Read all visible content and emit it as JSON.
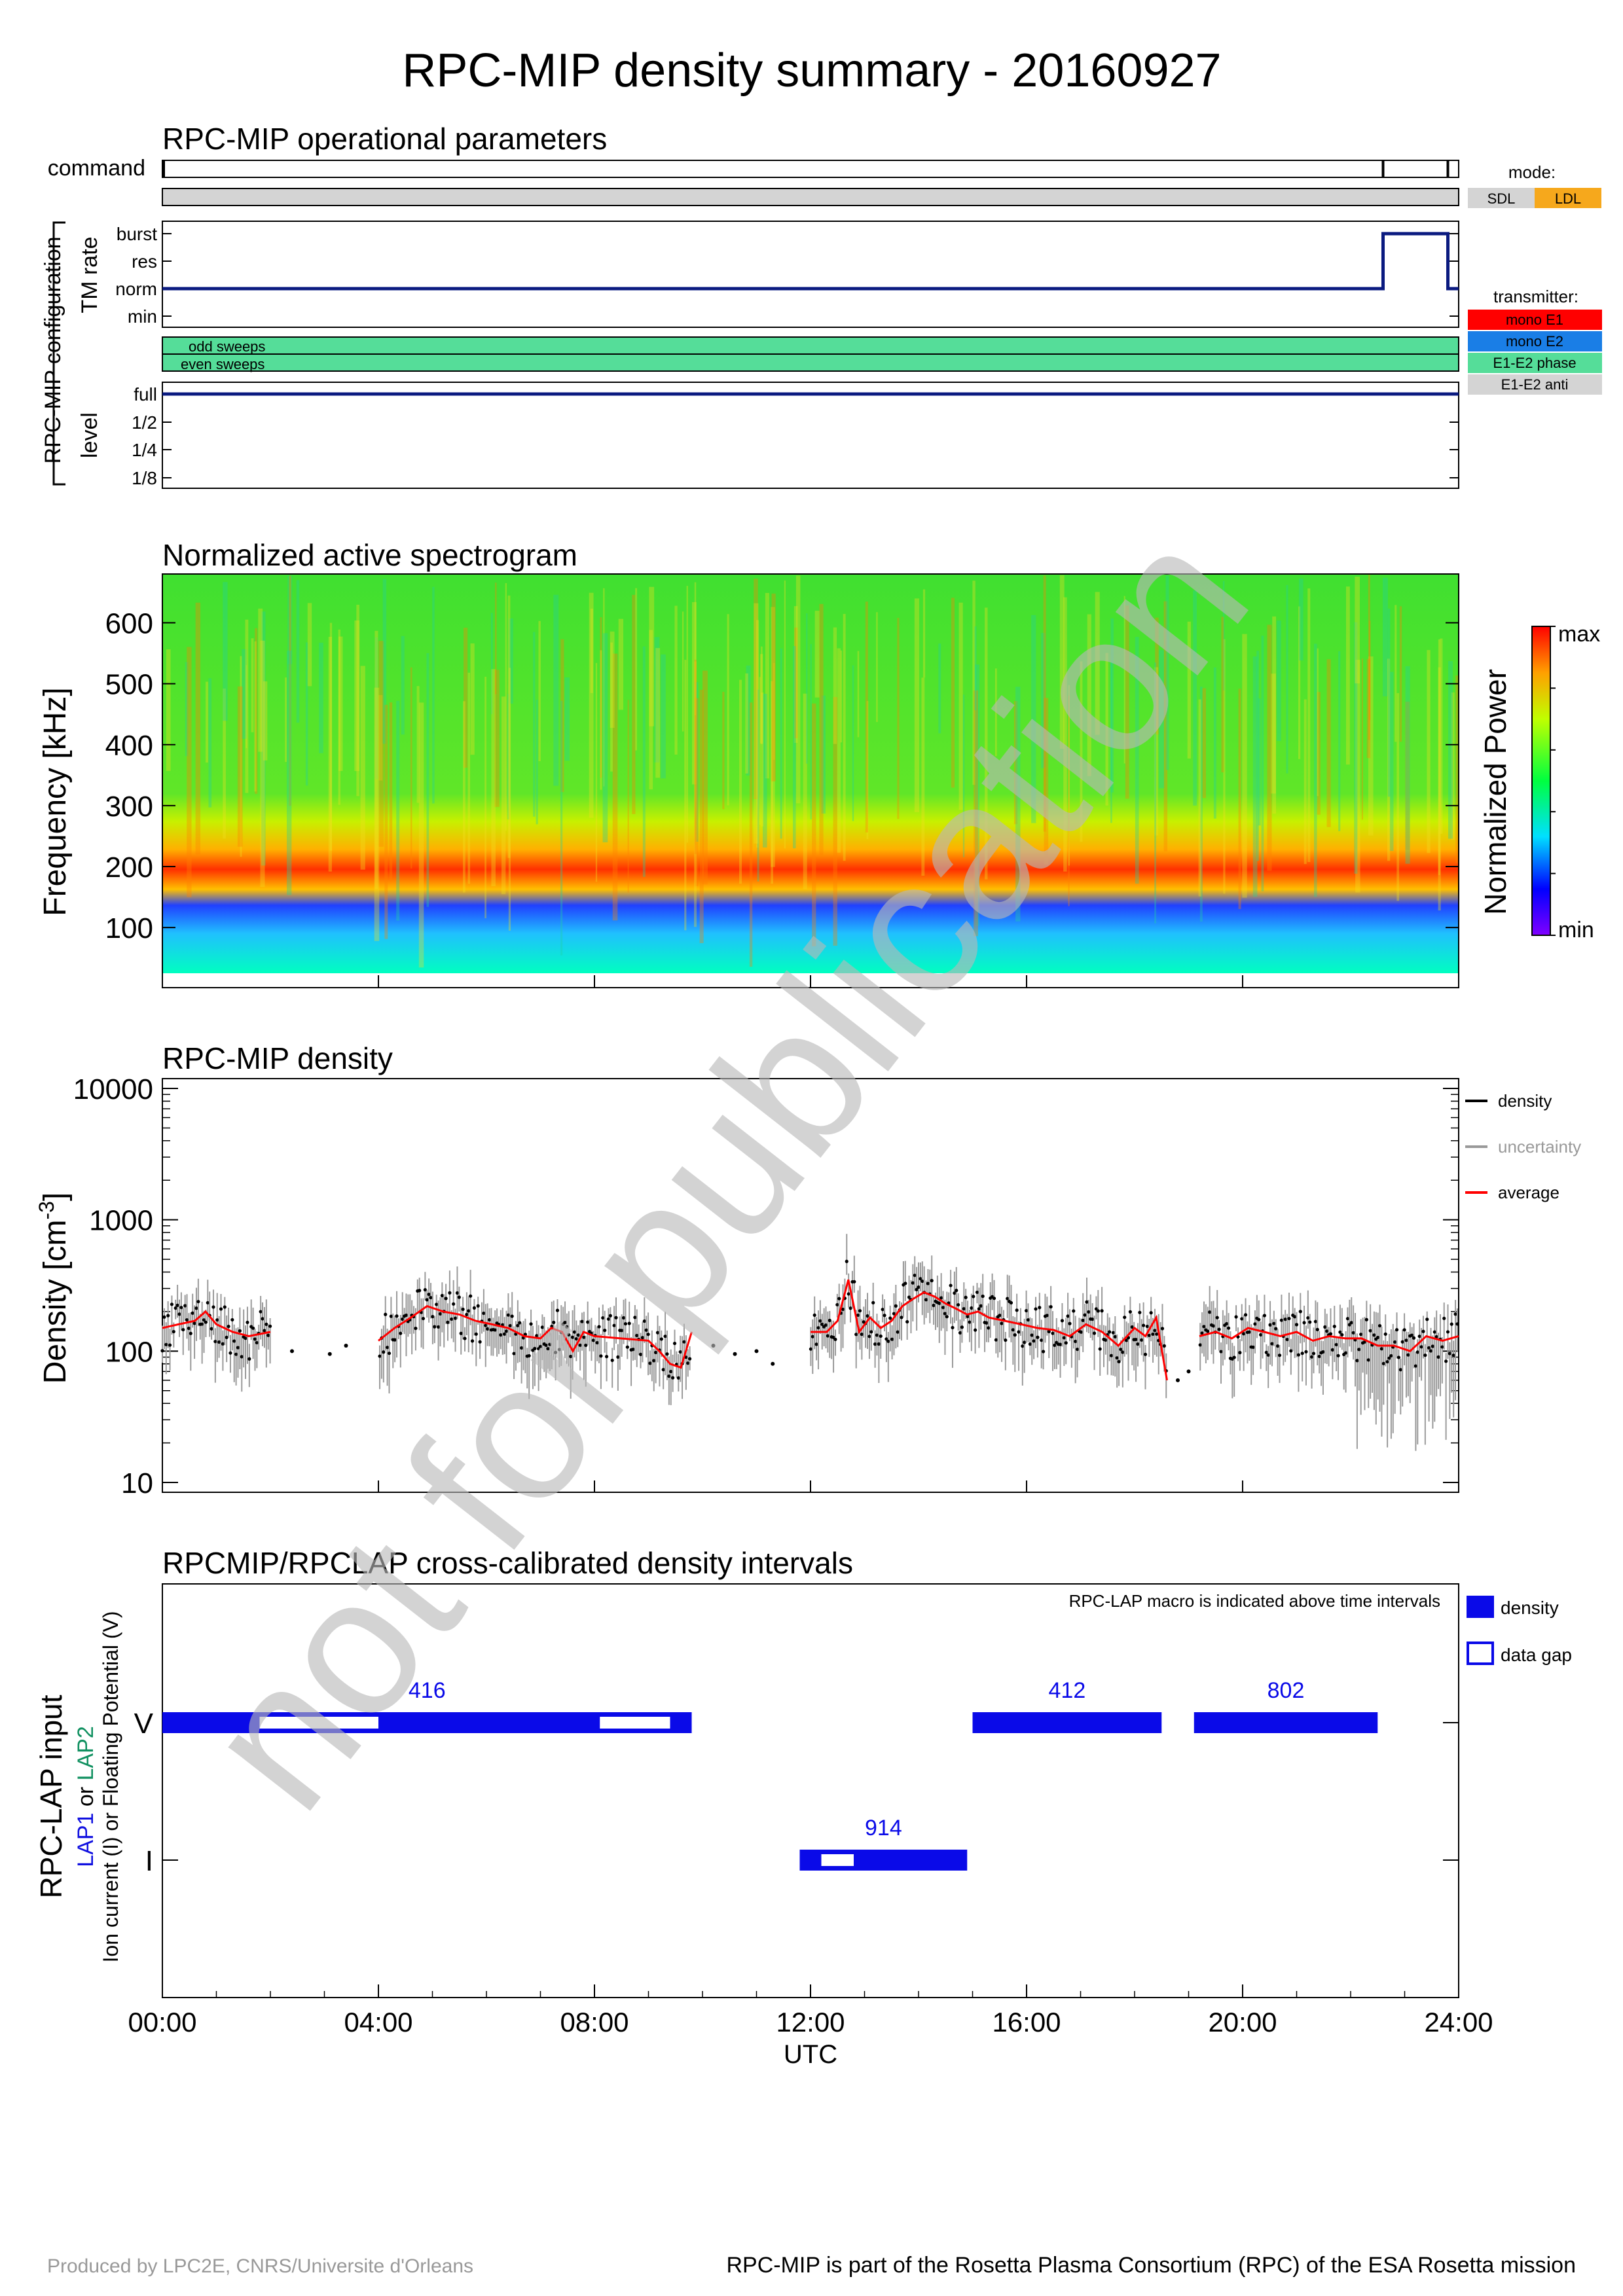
{
  "title": "RPC-MIP density summary - 20160927",
  "footer": {
    "left": "Produced by LPC2E, CNRS/Universite d'Orleans",
    "right": "RPC-MIP is part of the Rosetta Plasma Consortium (RPC) of the ESA Rosetta mission"
  },
  "watermark": "not for publication",
  "time_axis": {
    "ticks": [
      "00:00",
      "04:00",
      "08:00",
      "12:00",
      "16:00",
      "20:00",
      "24:00"
    ],
    "xlabel": "UTC"
  },
  "ops": {
    "title": "RPC-MIP operational parameters",
    "command_label": "command",
    "config_label": "RPC-MIP configuration",
    "tm_rate_label": "TM rate",
    "tm_levels": [
      "burst",
      "res",
      "norm",
      "min"
    ],
    "sweep_labels": [
      "odd sweeps",
      "even sweeps"
    ],
    "level_label": "level",
    "level_ticks": [
      "full",
      "1/2",
      "1/4",
      "1/8"
    ],
    "command_marks_hours": [
      0.0,
      22.6,
      23.8
    ],
    "tm_rate_trace": [
      [
        0,
        "norm"
      ],
      [
        22.6,
        "norm"
      ],
      [
        22.6,
        "burst"
      ],
      [
        23.8,
        "burst"
      ],
      [
        23.8,
        "norm"
      ],
      [
        24,
        "norm"
      ]
    ],
    "level_trace": [
      [
        0,
        "full"
      ],
      [
        24,
        "full"
      ]
    ],
    "mode_legend": {
      "title": "mode:",
      "items": [
        {
          "label": "SDL",
          "color": "#d4d4d4"
        },
        {
          "label": "LDL",
          "color": "#f6a81c"
        }
      ]
    },
    "transmitter_legend": {
      "title": "transmitter:",
      "items": [
        {
          "label": "mono E1",
          "color": "#ff0000"
        },
        {
          "label": "mono E2",
          "color": "#1a7ee6"
        },
        {
          "label": "E1-E2 phase",
          "color": "#55dd99"
        },
        {
          "label": "E1-E2 anti",
          "color": "#d4d4d4"
        }
      ]
    }
  },
  "spectrogram": {
    "title": "Normalized active spectrogram",
    "ylabel": "Frequency [kHz]",
    "yticks": [
      100,
      200,
      300,
      400,
      500,
      600
    ],
    "ylim": [
      25,
      680
    ],
    "colorbar": {
      "label": "Normalized Power",
      "max": "max",
      "min": "min"
    }
  },
  "chart_data": [
    {
      "type": "scatter",
      "title": "RPC-MIP density",
      "ylabel": "Density [cm-3]",
      "xlabel": "UTC",
      "yscale": "log",
      "ylim": [
        10,
        10000
      ],
      "yticks": [
        "10",
        "100",
        "1000",
        "10000"
      ],
      "legend": [
        "density",
        "uncertainty",
        "average"
      ],
      "legend_colors": [
        "#000000",
        "#999999",
        "#ff0000"
      ],
      "legend_placement": "right, outside top",
      "series": [
        {
          "name": "average",
          "x": [
            0.0,
            0.3,
            0.6,
            0.8,
            1.0,
            1.3,
            1.6,
            2.0,
            4.0,
            4.3,
            4.6,
            4.9,
            5.2,
            5.5,
            5.8,
            6.1,
            6.4,
            6.7,
            7.0,
            7.2,
            7.4,
            7.6,
            7.8,
            8.0,
            9.0,
            9.2,
            9.4,
            9.6,
            9.8,
            12.0,
            12.3,
            12.5,
            12.7,
            12.9,
            13.1,
            13.3,
            13.5,
            13.7,
            13.9,
            14.1,
            14.3,
            14.5,
            14.7,
            14.9,
            15.1,
            15.3,
            15.6,
            15.9,
            16.2,
            16.5,
            16.8,
            17.1,
            17.4,
            17.7,
            18.0,
            18.2,
            18.4,
            18.6,
            19.2,
            19.5,
            19.8,
            20.1,
            20.4,
            20.7,
            21.0,
            21.3,
            21.6,
            21.9,
            22.2,
            22.5,
            22.8,
            23.1,
            23.4,
            23.7,
            24.0
          ],
          "y": [
            150,
            160,
            170,
            200,
            160,
            140,
            130,
            140,
            120,
            150,
            180,
            220,
            200,
            190,
            170,
            160,
            150,
            130,
            125,
            150,
            140,
            100,
            140,
            130,
            120,
            100,
            80,
            75,
            140,
            140,
            140,
            170,
            350,
            140,
            180,
            150,
            170,
            220,
            250,
            280,
            260,
            230,
            210,
            190,
            200,
            180,
            170,
            160,
            150,
            145,
            130,
            160,
            140,
            110,
            150,
            130,
            180,
            60,
            130,
            140,
            125,
            150,
            140,
            130,
            140,
            120,
            130,
            125,
            125,
            110,
            110,
            100,
            130,
            120,
            130
          ]
        }
      ],
      "gaps_hours": [
        [
          2.0,
          4.0
        ],
        [
          9.8,
          12.0
        ],
        [
          18.6,
          19.2
        ]
      ]
    },
    {
      "type": "bar",
      "title": "RPCMIP/RPCLAP cross-calibrated density intervals",
      "ylabel": "RPC-LAP input",
      "ylabel2_parts": [
        "LAP1",
        " or ",
        "LAP2"
      ],
      "ylabel3": "Ion current (I) or Floating Potential (V)",
      "categories": [
        "V",
        "I"
      ],
      "note": "RPC-LAP macro is indicated above time intervals",
      "legend": [
        "density",
        "data gap"
      ],
      "intervals": [
        {
          "row": "V",
          "start": 0.0,
          "end": 9.8,
          "macro": "416",
          "gaps": [
            [
              1.8,
              4.0
            ],
            [
              8.1,
              9.4
            ]
          ]
        },
        {
          "row": "I",
          "start": 11.8,
          "end": 14.9,
          "macro": "914",
          "gaps": [
            [
              12.2,
              12.8
            ]
          ]
        },
        {
          "row": "V",
          "start": 15.0,
          "end": 18.5,
          "macro": "412",
          "gaps": []
        },
        {
          "row": "V",
          "start": 19.1,
          "end": 22.5,
          "macro": "802",
          "gaps": []
        }
      ]
    }
  ]
}
